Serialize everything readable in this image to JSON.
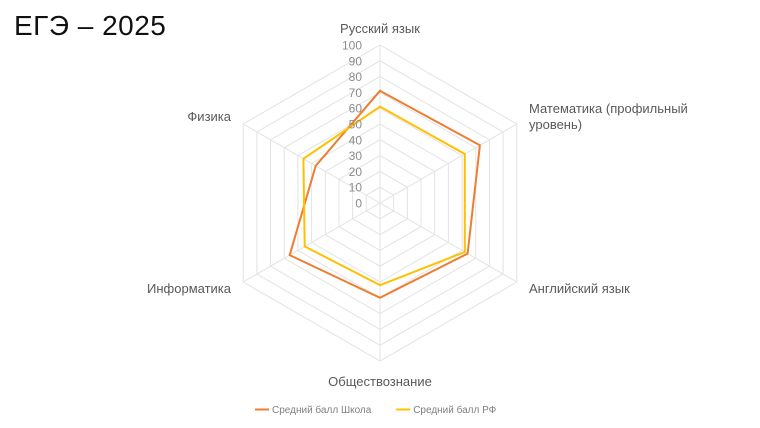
{
  "slide": {
    "title": "ЕГЭ – 2025"
  },
  "chart_data": {
    "type": "radar",
    "title": "",
    "axes": [
      {
        "name": "Русский язык",
        "lines": [
          "Русский язык"
        ]
      },
      {
        "name": "Математика (профильный уровень)",
        "lines": [
          "Математика (профильный",
          "уровень)"
        ]
      },
      {
        "name": "Английский язык",
        "lines": [
          "Английский язык"
        ]
      },
      {
        "name": "Обществознание",
        "lines": [
          "Обществознание"
        ]
      },
      {
        "name": "Информатика",
        "lines": [
          "Информатика"
        ]
      },
      {
        "name": "Физика",
        "lines": [
          "Физика"
        ]
      }
    ],
    "range": [
      0,
      100
    ],
    "ticks": [
      "0",
      "10",
      "20",
      "30",
      "40",
      "50",
      "60",
      "70",
      "80",
      "90",
      "100"
    ],
    "series": [
      {
        "name": "Средний балл Школа",
        "color": "#ED7D31",
        "values": [
          71,
          73,
          64,
          60,
          66,
          47
        ]
      },
      {
        "name": "Средний балл РФ",
        "color": "#FFC000",
        "values": [
          61,
          62,
          62,
          52,
          55,
          56
        ]
      }
    ],
    "grid": true,
    "legend": "bottom"
  }
}
